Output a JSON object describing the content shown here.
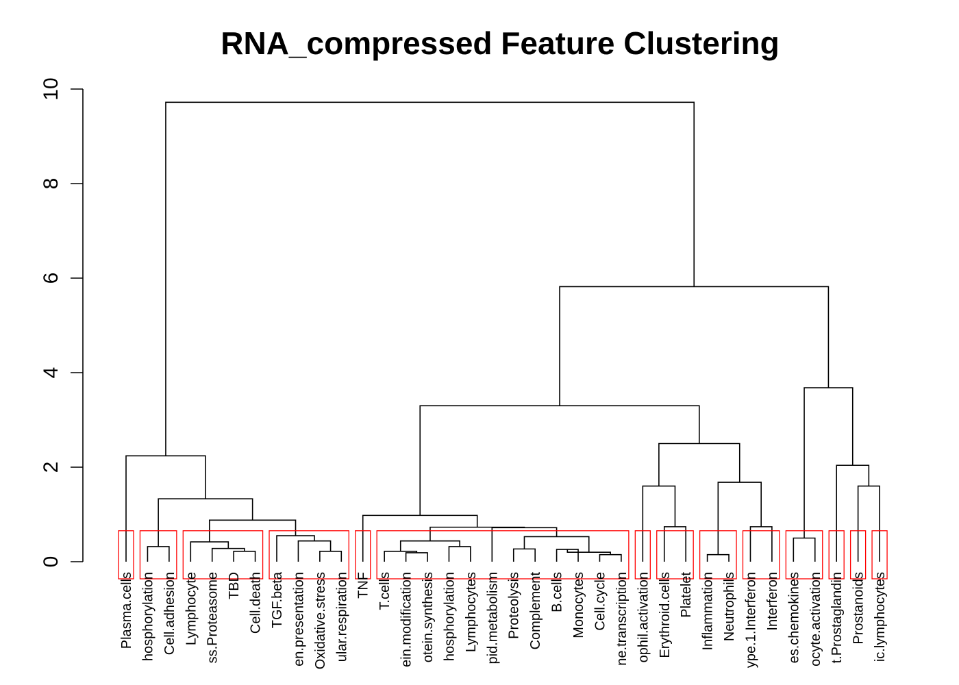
{
  "chart_data": {
    "type": "dendrogram",
    "title": "RNA_compressed Feature Clustering",
    "xlabel": "",
    "ylabel": "",
    "ylim": [
      0,
      10
    ],
    "y_ticks": [
      0,
      2,
      4,
      6,
      8,
      10
    ],
    "leaves": [
      "Plasma.cells",
      "hosphorylation",
      "Cell.adhesion",
      "Lymphocyte",
      "ss.Proteasome",
      "TBD",
      "Cell.death",
      "TGF.beta",
      "en.presentation",
      "Oxidative.stress",
      "ular.respiration",
      "TNF",
      "T.cells",
      "ein.modification",
      "otein.synthesis",
      "hosphorylation",
      "Lymphocytes",
      "pid.metabolism",
      "Proteolysis",
      "Complement",
      "B.cells",
      "Monocytes",
      "Cell.cycle",
      "ne.transcription",
      "ophil.activation",
      "Erythroid.cells",
      "Platelet",
      "Inflammation",
      "Neutrophils",
      "ype.1.Interferon",
      "Interferon",
      "es.chemokines",
      "ocyte.activation",
      "t.Prostaglandin",
      "Prostanoids",
      "ic.lymphocytes"
    ],
    "merges": [
      [
        5,
        6,
        0.22
      ],
      [
        4,
        "m0",
        0.28
      ],
      [
        3,
        "m1",
        0.42
      ],
      [
        9,
        10,
        0.22
      ],
      [
        8,
        "m3",
        0.44
      ],
      [
        7,
        "m4",
        0.55
      ],
      [
        "m2",
        "m5",
        0.88
      ],
      [
        1,
        2,
        0.32
      ],
      [
        "m7",
        "m6",
        1.33
      ],
      [
        0,
        "m8",
        2.24
      ],
      [
        13,
        14,
        0.19
      ],
      [
        12,
        "m10",
        0.22
      ],
      [
        15,
        16,
        0.32
      ],
      [
        "m11",
        "m12",
        0.44
      ],
      [
        20,
        21,
        0.26
      ],
      [
        22,
        23,
        0.15
      ],
      [
        "m14",
        "m15",
        0.2
      ],
      [
        18,
        19,
        0.27
      ],
      [
        "m17",
        "m16",
        0.53
      ],
      [
        17,
        "m18",
        0.72
      ],
      [
        "m13",
        "m19",
        0.73
      ],
      [
        11,
        "m20",
        0.98
      ],
      [
        25,
        26,
        0.74
      ],
      [
        24,
        "m22",
        1.6
      ],
      [
        27,
        28,
        0.15
      ],
      [
        29,
        30,
        0.74
      ],
      [
        "m24",
        "m25",
        1.68
      ],
      [
        "m23",
        "m26",
        2.5
      ],
      [
        "m21",
        "m27",
        3.3
      ],
      [
        34,
        35,
        1.6
      ],
      [
        33,
        "m29",
        2.04
      ],
      [
        31,
        32,
        0.5
      ],
      [
        "m31",
        "m30",
        3.68
      ],
      [
        "m28",
        "m32",
        5.82
      ],
      [
        "m9",
        "m33",
        9.72
      ]
    ],
    "cut_height": 0.8,
    "clusters": [
      [
        0,
        0
      ],
      [
        1,
        2
      ],
      [
        3,
        6
      ],
      [
        7,
        10
      ],
      [
        11,
        11
      ],
      [
        12,
        23
      ],
      [
        24,
        24
      ],
      [
        25,
        26
      ],
      [
        27,
        28
      ],
      [
        29,
        30
      ],
      [
        31,
        32
      ],
      [
        33,
        33
      ],
      [
        34,
        34
      ],
      [
        35,
        35
      ]
    ],
    "colors": {
      "branches": "#000000",
      "cluster_boxes": "#ff0000"
    }
  }
}
